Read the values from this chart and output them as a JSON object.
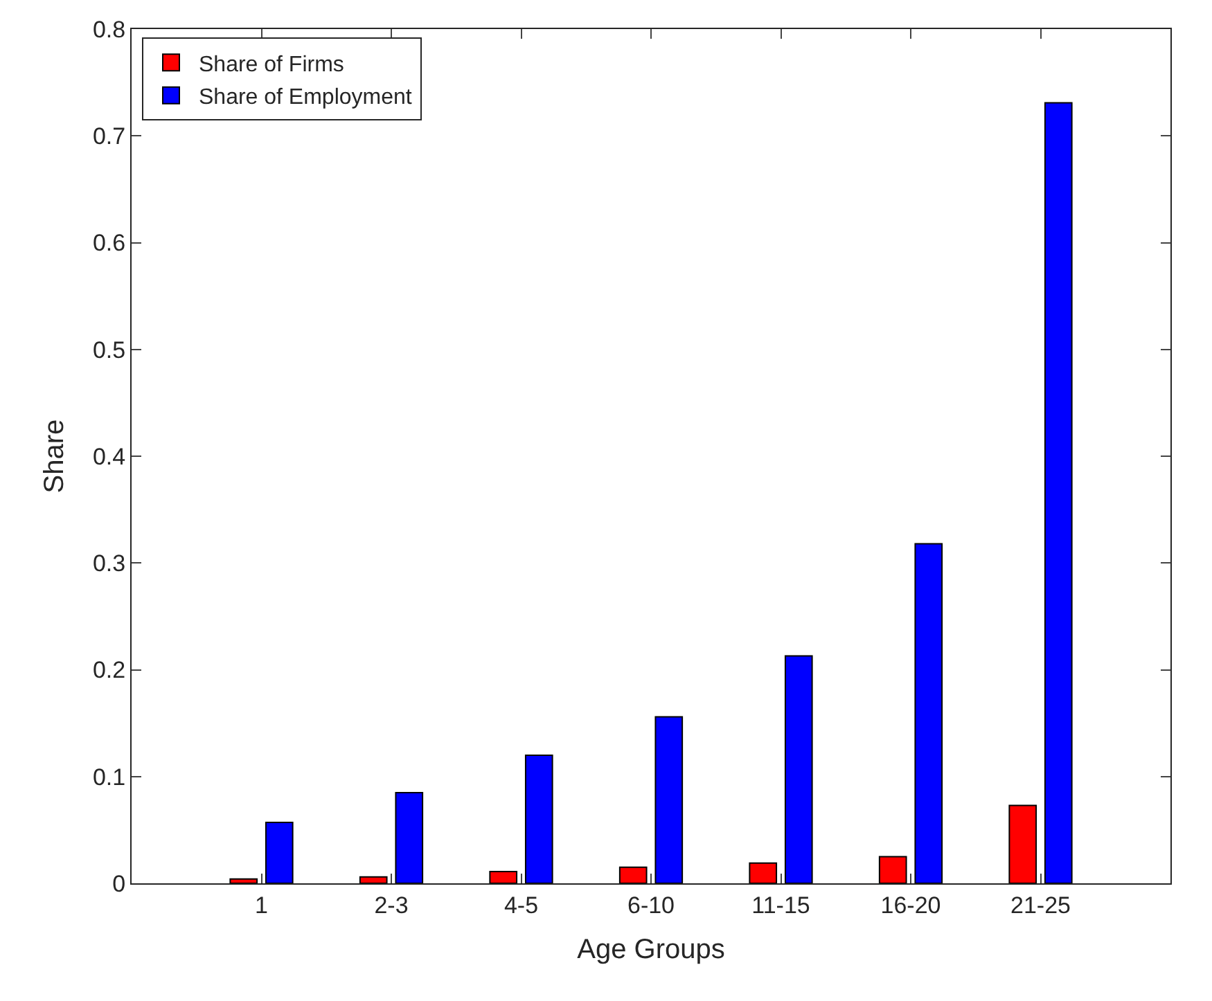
{
  "chart_data": {
    "type": "bar",
    "xlabel": "Age Groups",
    "ylabel": "Share",
    "categories": [
      "1",
      "2-3",
      "4-5",
      "6-10",
      "11-15",
      "16-20",
      "21-25"
    ],
    "series": [
      {
        "name": "Share of Firms",
        "color": "#ff0000",
        "values": [
          0.004,
          0.006,
          0.011,
          0.015,
          0.019,
          0.025,
          0.073
        ]
      },
      {
        "name": "Share of Employment",
        "color": "#0000ff",
        "values": [
          0.057,
          0.085,
          0.12,
          0.156,
          0.213,
          0.318,
          0.731
        ]
      }
    ],
    "ylim": [
      0,
      0.8
    ],
    "yticks": [
      0,
      0.1,
      0.2,
      0.3,
      0.4,
      0.5,
      0.6,
      0.7,
      0.8
    ],
    "legend": "top left"
  }
}
